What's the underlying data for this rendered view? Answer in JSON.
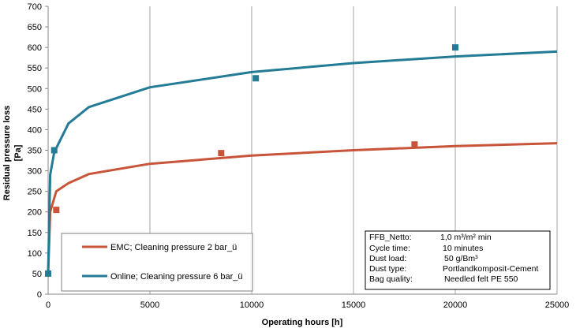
{
  "chart_data": {
    "type": "scatter",
    "xlabel": "Operating hours  [h]",
    "ylabel_line1": "Residual pressure loss",
    "ylabel_line2": "[Pa]",
    "xlim": [
      0,
      25000
    ],
    "ylim": [
      0,
      700
    ],
    "x_ticks": [
      0,
      5000,
      10000,
      15000,
      20000,
      25000
    ],
    "y_ticks": [
      0,
      50,
      100,
      150,
      200,
      250,
      300,
      350,
      400,
      450,
      500,
      550,
      600,
      650,
      700
    ],
    "grid": "vertical",
    "series": [
      {
        "name": "EMC; Cleaning pressure 2 bar_ü",
        "color": "#c8553a",
        "points": [
          [
            400,
            205
          ],
          [
            8500,
            343
          ],
          [
            18000,
            364
          ]
        ],
        "trend": "logarithmic",
        "trend_values": [
          [
            0,
            50
          ],
          [
            100,
            200
          ],
          [
            400,
            250
          ],
          [
            1000,
            270
          ],
          [
            2000,
            292
          ],
          [
            5000,
            317
          ],
          [
            10000,
            337
          ],
          [
            15000,
            350
          ],
          [
            20000,
            360
          ],
          [
            25000,
            367
          ]
        ]
      },
      {
        "name": "Online; Cleaning pressure 6 bar_ü",
        "color": "#237b96",
        "points": [
          [
            0,
            50
          ],
          [
            300,
            350
          ],
          [
            10200,
            525
          ],
          [
            20000,
            600
          ]
        ],
        "trend": "logarithmic",
        "trend_values": [
          [
            0,
            50
          ],
          [
            100,
            290
          ],
          [
            300,
            345
          ],
          [
            1000,
            415
          ],
          [
            2000,
            455
          ],
          [
            5000,
            503
          ],
          [
            10000,
            540
          ],
          [
            15000,
            562
          ],
          [
            20000,
            578
          ],
          [
            25000,
            590
          ]
        ]
      }
    ],
    "info_box": [
      {
        "label": "FFB_Netto:",
        "value": "1,0 m³/m² min"
      },
      {
        "label": "Cycle time:",
        "value": "10 minutes"
      },
      {
        "label": "Dust load:",
        "value": "50 g/Bm³"
      },
      {
        "label": "Dust type:",
        "value": "Portlandkomposit-Cement"
      },
      {
        "label": "Bag quality:",
        "value": "Needled felt PE 550"
      }
    ]
  }
}
